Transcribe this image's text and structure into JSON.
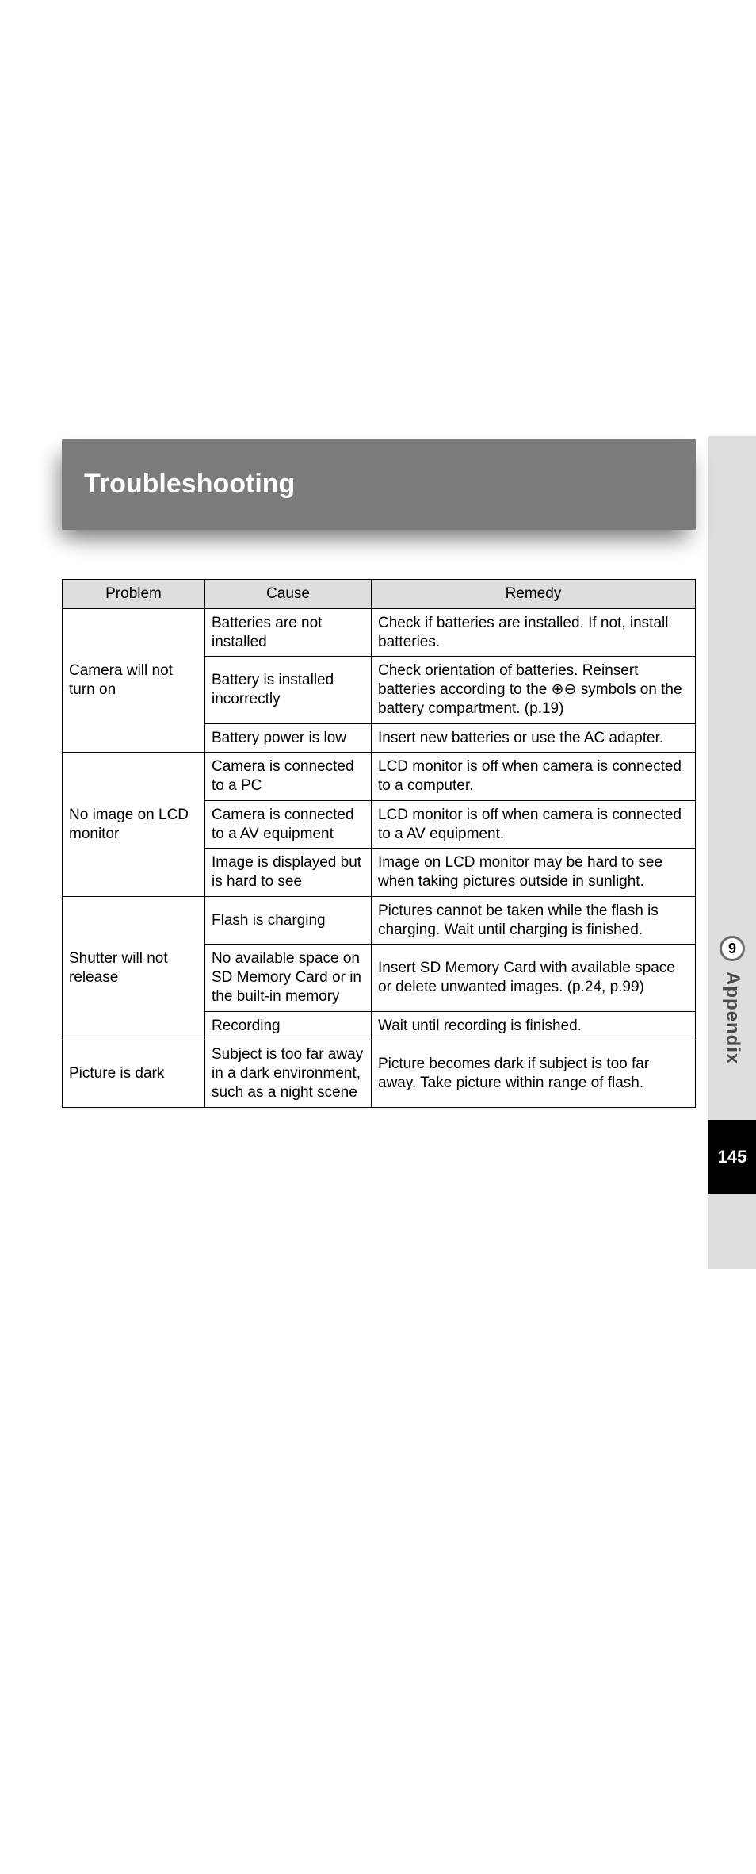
{
  "header": {
    "title": "Troubleshooting"
  },
  "columns": {
    "c1": "Problem",
    "c2": "Cause",
    "c3": "Remedy"
  },
  "rows": {
    "p1": "Camera will not turn on",
    "p1c1": "Batteries are not installed",
    "p1r1": "Check if batteries are installed. If not, install batteries.",
    "p1c2": "Battery is installed incorrectly",
    "p1r2_a": "Check orientation of batteries. Reinsert batteries according to the ",
    "p1r2_b": " symbols on the battery compartment. (p.19)",
    "p1c3": "Battery power is low",
    "p1r3": "Insert new batteries or use the AC adapter.",
    "p2": "No image on LCD monitor",
    "p2c1": "Camera is connected to a PC",
    "p2r1": "LCD monitor is off when camera is connected to a computer.",
    "p2c2": "Camera is connected to a AV equipment",
    "p2r2": "LCD monitor is off when camera is connected to a AV equipment.",
    "p2c3": "Image is displayed but is hard to see",
    "p2r3": "Image on LCD monitor may be hard to see when taking pictures outside in sunlight.",
    "p3": "Shutter will not release",
    "p3c1": "Flash is charging",
    "p3r1": "Pictures cannot be taken while the flash is charging. Wait until charging is finished.",
    "p3c2": "No available space on SD Memory Card or in the built-in memory",
    "p3r2": "Insert SD Memory Card with available space or delete unwanted images. (p.24, p.99)",
    "p3c3": "Recording",
    "p3r3": "Wait until recording is finished.",
    "p4": "Picture is dark",
    "p4c1": "Subject is too far away in a dark environment, such as a night scene",
    "p4r1": "Picture becomes dark if subject is too far away. Take picture within range of flash."
  },
  "side": {
    "chapter": "9",
    "label": "Appendix",
    "page": "145"
  },
  "symbols": {
    "plus": "⊕",
    "minus": "⊖"
  },
  "style": {
    "header_bg": "#7c7c7c",
    "header_text": "#ffffff",
    "th_bg": "#dedede",
    "border": "#000000",
    "side_grey": "#dedede",
    "side_black": "#000000",
    "chapter_badge_outer": "#6c6c6c",
    "chapter_badge_inner": "#ffffff",
    "body_font_size": 19,
    "header_font_size": 34
  }
}
